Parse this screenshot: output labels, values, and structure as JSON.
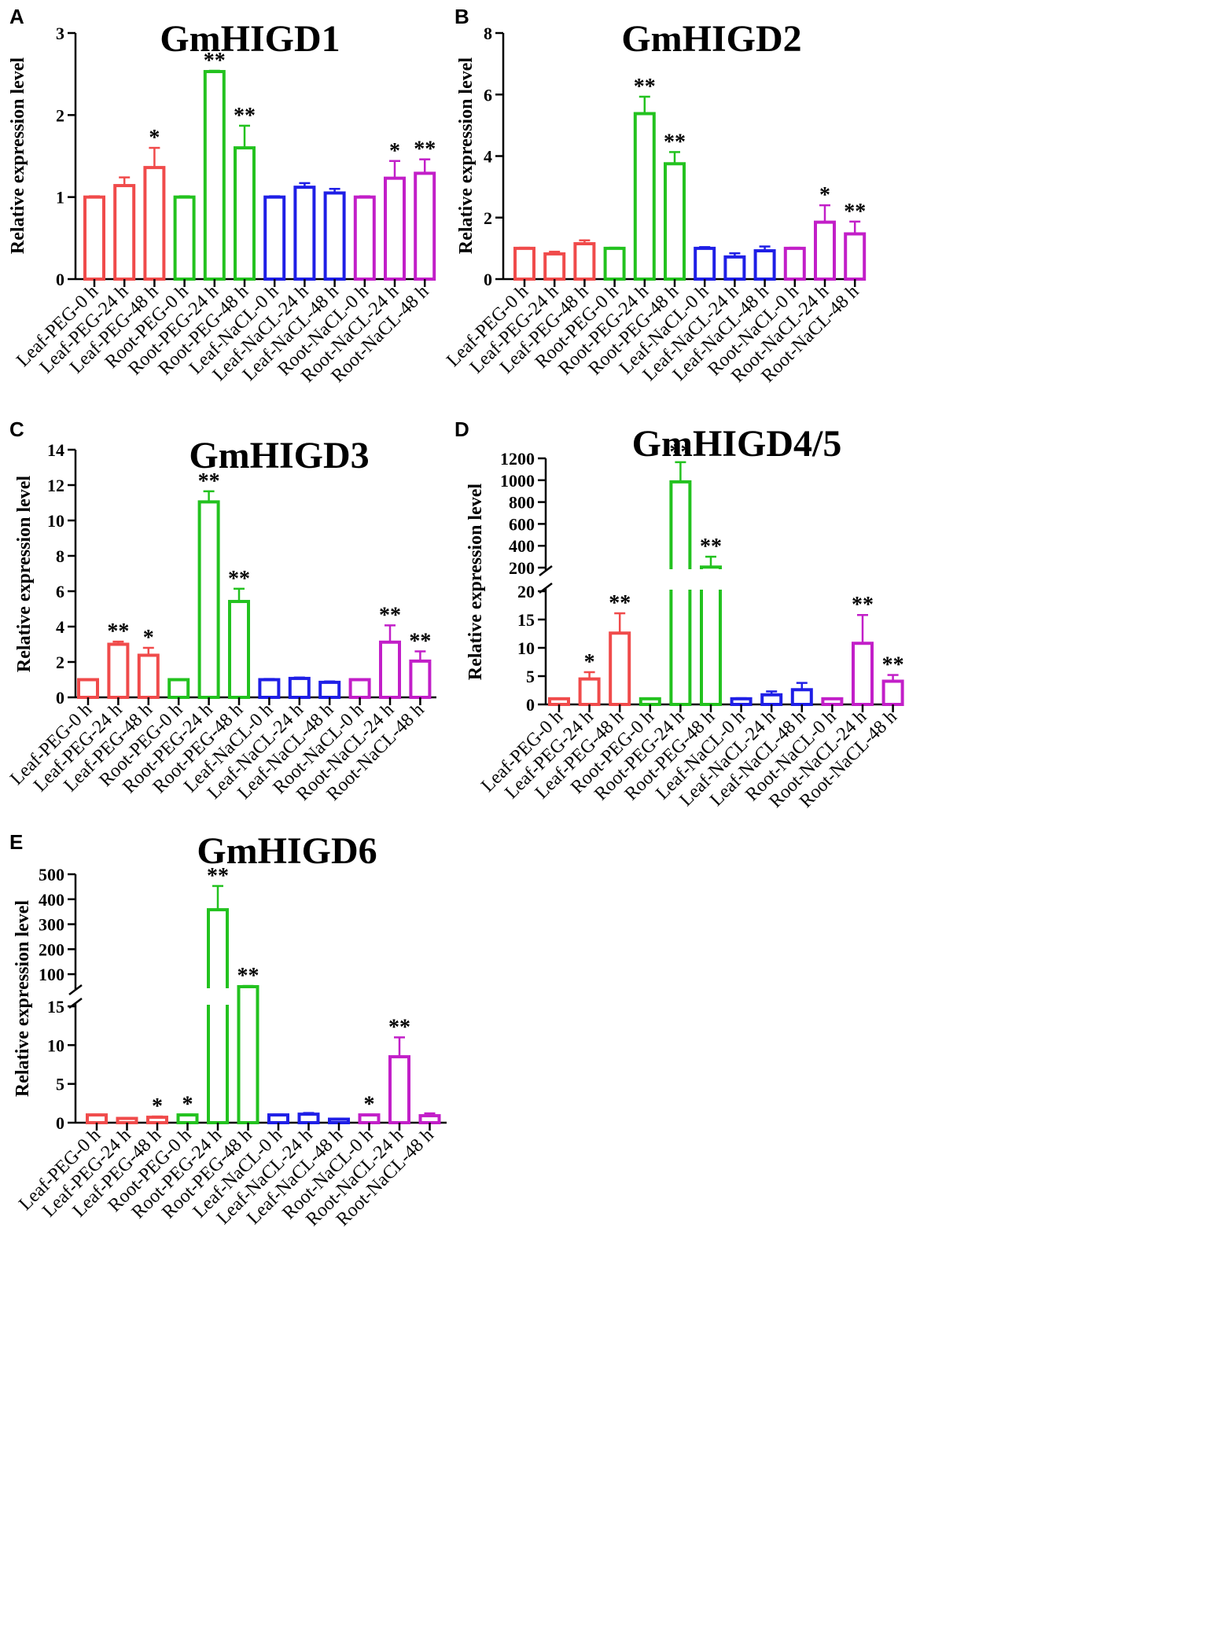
{
  "colors": {
    "leaf_peg": "#f04b4b",
    "root_peg": "#23c21f",
    "leaf_nacl": "#1f1fe6",
    "root_nacl": "#c21fc8",
    "axis": "#000000"
  },
  "chart_data": [
    {
      "panel": "A",
      "type": "bar",
      "title": "GmHIGD1",
      "ylabel": "Relative expression level",
      "xlabel": "",
      "categories": [
        "Leaf-PEG-0 h",
        "Leaf-PEG-24 h",
        "Leaf-PEG-48 h",
        "Root-PEG-0 h",
        "Root-PEG-24 h",
        "Root-PEG-48 h",
        "Leaf-NaCL-0 h",
        "Leaf-NaCL-24 h",
        "Leaf-NaCL-48 h",
        "Root-NaCL-0 h",
        "Root-NaCL-24 h",
        "Root-NaCL-48 h"
      ],
      "values": [
        1.0,
        1.14,
        1.36,
        1.0,
        2.53,
        1.6,
        1.0,
        1.12,
        1.05,
        1.0,
        1.23,
        1.29
      ],
      "errors": [
        0.01,
        0.1,
        0.24,
        0.01,
        0.01,
        0.27,
        0.01,
        0.05,
        0.05,
        0.01,
        0.21,
        0.17
      ],
      "significance": [
        "",
        "",
        "*",
        "",
        "**",
        "**",
        "",
        "",
        "",
        "",
        "*",
        "**"
      ],
      "ylim": [
        0,
        3
      ],
      "yticks": [
        0,
        1,
        2,
        3
      ]
    },
    {
      "panel": "B",
      "type": "bar",
      "title": "GmHIGD2",
      "ylabel": "Relative expression level",
      "xlabel": "",
      "categories": [
        "Leaf-PEG-0 h",
        "Leaf-PEG-24 h",
        "Leaf-PEG-48 h",
        "Root-PEG-0 h",
        "Root-PEG-24 h",
        "Root-PEG-48 h",
        "Leaf-NaCL-0 h",
        "Leaf-NaCL-24 h",
        "Leaf-NaCL-48 h",
        "Root-NaCL-0 h",
        "Root-NaCL-24 h",
        "Root-NaCL-48 h"
      ],
      "values": [
        1.0,
        0.82,
        1.15,
        1.0,
        5.38,
        3.75,
        1.0,
        0.72,
        0.92,
        1.0,
        1.85,
        1.47
      ],
      "errors": [
        0.02,
        0.07,
        0.11,
        0.02,
        0.55,
        0.38,
        0.04,
        0.12,
        0.14,
        0.02,
        0.55,
        0.4
      ],
      "significance": [
        "",
        "",
        "",
        "",
        "**",
        "**",
        "",
        "",
        "",
        "",
        "*",
        "**"
      ],
      "ylim": [
        0,
        8
      ],
      "yticks": [
        0,
        2,
        4,
        6,
        8
      ]
    },
    {
      "panel": "C",
      "type": "bar",
      "title": "GmHIGD3",
      "ylabel": "Relative expression level",
      "xlabel": "",
      "categories": [
        "Leaf-PEG-0 h",
        "Leaf-PEG-24 h",
        "Leaf-PEG-48 h",
        "Root-PEG-0 h",
        "Root-PEG-24 h",
        "Root-PEG-48 h",
        "Leaf-NaCL-0 h",
        "Leaf-NaCL-24 h",
        "Leaf-NaCL-48 h",
        "Root-NaCL-0 h",
        "Root-NaCL-24 h",
        "Root-NaCL-48 h"
      ],
      "values": [
        1.0,
        3.0,
        2.38,
        1.0,
        11.05,
        5.42,
        1.0,
        1.07,
        0.85,
        1.0,
        3.12,
        2.05
      ],
      "errors": [
        0.02,
        0.15,
        0.42,
        0.02,
        0.6,
        0.72,
        0.04,
        0.05,
        0.05,
        0.02,
        0.95,
        0.55
      ],
      "significance": [
        "",
        "**",
        "*",
        "",
        "**",
        "**",
        "",
        "",
        "",
        "",
        "**",
        "**"
      ],
      "ylim": [
        0,
        14
      ],
      "yticks": [
        0,
        2,
        4,
        6,
        8,
        10,
        12,
        14
      ]
    },
    {
      "panel": "D",
      "type": "bar",
      "title": "GmHIGD4/5",
      "ylabel": "Relative expression level",
      "xlabel": "",
      "categories": [
        "Leaf-PEG-0 h",
        "Leaf-PEG-24 h",
        "Leaf-PEG-48 h",
        "Root-PEG-0 h",
        "Root-PEG-24 h",
        "Root-PEG-48 h",
        "Leaf-NaCL-0 h",
        "Leaf-NaCL-24 h",
        "Leaf-NaCL-48 h",
        "Root-NaCL-0 h",
        "Root-NaCL-24 h",
        "Root-NaCL-48 h"
      ],
      "values": [
        1.0,
        4.5,
        12.6,
        1.0,
        985,
        205,
        1.0,
        1.7,
        2.6,
        1.0,
        10.8,
        4.1
      ],
      "errors": [
        0.05,
        1.2,
        3.5,
        0.05,
        180,
        95,
        0.1,
        0.6,
        1.2,
        0.05,
        5.0,
        1.1
      ],
      "significance": [
        "",
        "*",
        "**",
        "",
        "**",
        "**",
        "",
        "",
        "",
        "",
        "**",
        "**"
      ],
      "ylim": [
        0,
        1200
      ],
      "ybreak": [
        20,
        200
      ],
      "yticks_lower": [
        0,
        5,
        10,
        15,
        20
      ],
      "yticks_upper": [
        200,
        400,
        600,
        800,
        1000,
        1200
      ]
    },
    {
      "panel": "E",
      "type": "bar",
      "title": "GmHIGD6",
      "ylabel": "Relative expression level",
      "xlabel": "",
      "categories": [
        "Leaf-PEG-0 h",
        "Leaf-PEG-24 h",
        "Leaf-PEG-48 h",
        "Root-PEG-0 h",
        "Root-PEG-24 h",
        "Root-PEG-48 h",
        "Leaf-NaCL-0 h",
        "Leaf-NaCL-24 h",
        "Leaf-NaCL-48 h",
        "Root-NaCL-0 h",
        "Root-NaCL-24 h",
        "Root-NaCL-48 h"
      ],
      "values": [
        1.0,
        0.55,
        0.7,
        1.0,
        358,
        38,
        1.0,
        1.1,
        0.45,
        1.0,
        8.5,
        0.9
      ],
      "errors": [
        0.05,
        0.05,
        0.1,
        0.05,
        95,
        15,
        0.05,
        0.15,
        0.05,
        0.05,
        2.5,
        0.3
      ],
      "significance": [
        "",
        "",
        "*",
        "*",
        "**",
        "**",
        "",
        "",
        "",
        "*",
        "**",
        ""
      ],
      "ylim": [
        0,
        500
      ],
      "ybreak": [
        15,
        50
      ],
      "yticks_lower": [
        0,
        5,
        10,
        15
      ],
      "yticks_upper": [
        100,
        200,
        300,
        400,
        500
      ]
    }
  ]
}
